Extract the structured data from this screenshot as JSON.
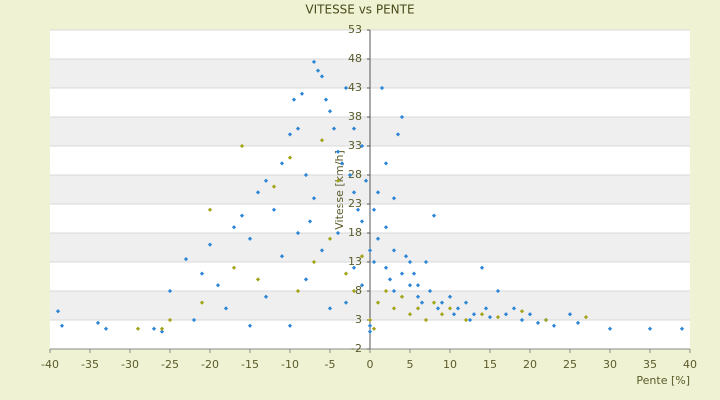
{
  "chart_data": {
    "type": "scatter",
    "title": "VITESSE vs PENTE",
    "x_label": "Pente [%]",
    "y_label": "Vitesse [km/h]",
    "xlim": [
      -40,
      40
    ],
    "xticks": [
      -40,
      -35,
      -30,
      -25,
      -20,
      -15,
      -10,
      -5,
      0,
      5,
      10,
      15,
      20,
      25,
      30,
      35,
      40
    ],
    "ylim": [
      -2,
      53
    ],
    "yticks": [
      -2,
      3,
      8,
      13,
      18,
      23,
      28,
      33,
      38,
      43,
      48,
      53
    ],
    "series": [
      {
        "color": "#2e86d6",
        "x": [
          -39,
          -38.5,
          -34,
          -33,
          -27,
          -26,
          -25,
          -23,
          -22,
          -21,
          -20,
          -19,
          -18,
          -17,
          -16,
          -15,
          -14,
          -13,
          -12,
          -11,
          -10,
          -9.5,
          -9,
          -8.5,
          -8,
          -7.5,
          -7,
          -6.5,
          -6,
          -5.5,
          -5,
          -4.5,
          -4,
          -3.5,
          -3,
          -2.5,
          -2,
          -1.5,
          -1,
          -0.5,
          0,
          0.5,
          1,
          1.5,
          2,
          2.5,
          3,
          3.5,
          4,
          4.5,
          5,
          5.5,
          6,
          6.5,
          7,
          7.5,
          8,
          8.5,
          9,
          10,
          10.5,
          11,
          12,
          12.5,
          13,
          14,
          14.5,
          15,
          16,
          17,
          18,
          19,
          20,
          21,
          22,
          23,
          25,
          26,
          30,
          35,
          39,
          -10,
          -8,
          -6,
          -4,
          -3,
          -2,
          -1,
          0.5,
          1,
          2,
          3,
          4,
          5,
          6,
          0,
          0,
          -5,
          -7,
          -9,
          -11,
          -13,
          -15,
          2,
          3,
          -1,
          -2
        ],
        "y": [
          4.5,
          2,
          2.5,
          1.5,
          1.5,
          1,
          8,
          13.5,
          3,
          11,
          16,
          9,
          5,
          19,
          21,
          17,
          25,
          27,
          22,
          30,
          35,
          41,
          36,
          42,
          28,
          20,
          47.5,
          46,
          45,
          41,
          39,
          36,
          32,
          30,
          43,
          28,
          25,
          22,
          20,
          27,
          15,
          13,
          17,
          43,
          12,
          10,
          8,
          35,
          38,
          14,
          9,
          11,
          7,
          6,
          13,
          8,
          21,
          5,
          6,
          7,
          4,
          5,
          6,
          3,
          4,
          12,
          5,
          3.5,
          8,
          4,
          5,
          3,
          4,
          2.5,
          3,
          2,
          4,
          2.5,
          1.5,
          1.5,
          1.5,
          2,
          10,
          15,
          18,
          6,
          12,
          9,
          22,
          25,
          19,
          15,
          11,
          13,
          9,
          1,
          2,
          5,
          24,
          18,
          14,
          7,
          2,
          30,
          24,
          33,
          36
        ]
      },
      {
        "color": "#a3a31c",
        "x": [
          -25,
          -21,
          -20,
          -17,
          -16,
          -14,
          -12,
          -10,
          -9,
          -7,
          -6,
          -5,
          -4,
          -3,
          -2,
          -1,
          0,
          0.5,
          1,
          2,
          3,
          4,
          5,
          6,
          7,
          8,
          9,
          10,
          12,
          14,
          16,
          19,
          22,
          27,
          -29,
          -26
        ],
        "y": [
          3,
          6,
          22,
          12,
          33,
          10,
          26,
          31,
          8,
          13,
          34,
          17,
          27,
          11,
          8,
          14,
          3,
          1.5,
          6,
          8,
          5,
          7,
          4,
          5,
          3,
          6,
          4,
          5,
          3,
          4,
          3.5,
          4.5,
          3,
          3.5,
          1.5,
          1.5
        ]
      }
    ]
  }
}
